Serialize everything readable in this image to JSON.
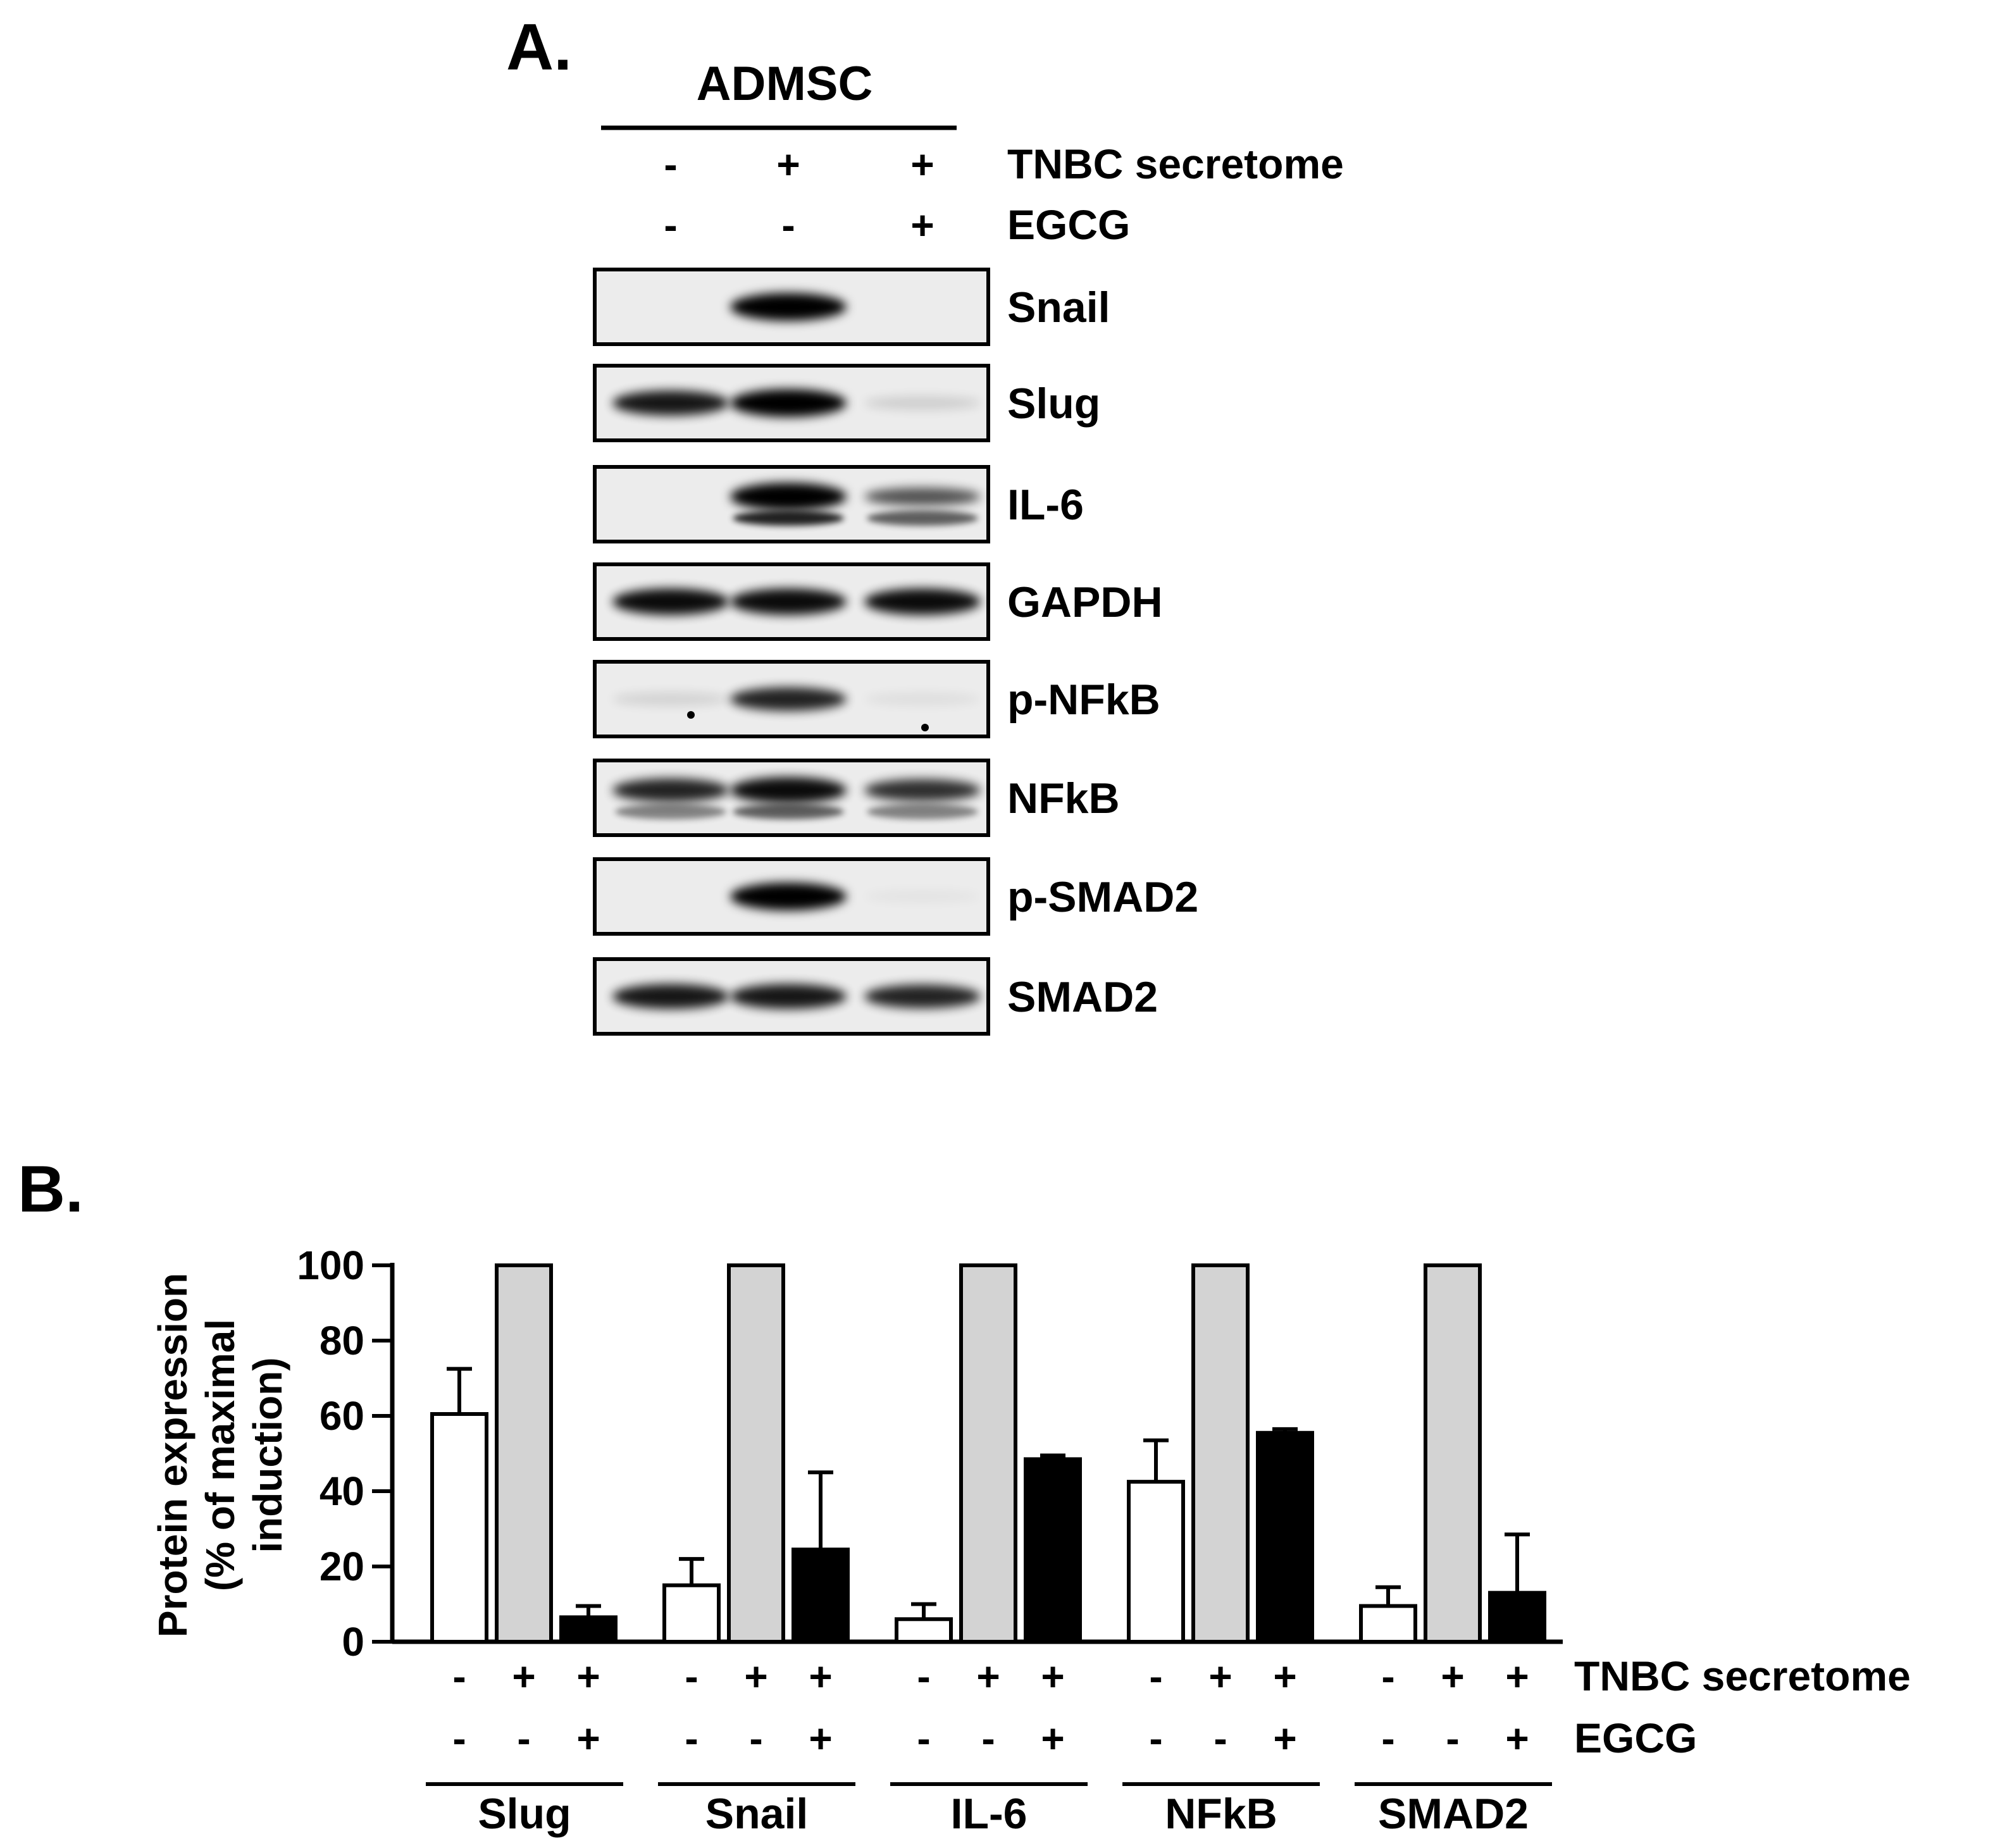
{
  "panel_a": {
    "label": "A.",
    "cell_line": "ADMSC",
    "treatments": [
      {
        "name": "TNBC secretome",
        "signs": [
          "-",
          "+",
          "+"
        ]
      },
      {
        "name": "EGCG",
        "signs": [
          "-",
          "-",
          "+"
        ]
      }
    ],
    "blots": [
      {
        "label": "Snail"
      },
      {
        "label": "Slug"
      },
      {
        "label": "IL-6"
      },
      {
        "label": "GAPDH"
      },
      {
        "label": "p-NFkB"
      },
      {
        "label": "NFkB"
      },
      {
        "label": "p-SMAD2"
      },
      {
        "label": "SMAD2"
      }
    ]
  },
  "panel_b": {
    "label": "B."
  },
  "chart_data": {
    "type": "bar",
    "ylabel": "Protein expression (% of maximal induction)",
    "ylabel_lines": [
      "Protein expression",
      "(% of maximal",
      "induction)"
    ],
    "ylim": [
      0,
      100
    ],
    "yticks": [
      "0",
      "20",
      "40",
      "60",
      "80",
      "100"
    ],
    "categories": [
      "Slug",
      "Snail",
      "IL-6",
      "NFkB",
      "SMAD2"
    ],
    "series": [
      {
        "key": "control",
        "fill": "#ffffff",
        "values": [
          60.5,
          15,
          6,
          42.5,
          9.5
        ],
        "errors": [
          12,
          7,
          4,
          11,
          5
        ]
      },
      {
        "key": "tnbc",
        "fill": "#d3d3d3",
        "values": [
          100,
          100,
          100,
          100,
          100
        ],
        "errors": [
          0,
          0,
          0,
          0,
          0
        ]
      },
      {
        "key": "tnbc_egcg",
        "fill": "#000000",
        "values": [
          6.5,
          24.5,
          48.5,
          55.5,
          13
        ],
        "errors": [
          3,
          20.5,
          1,
          1,
          15.5
        ]
      }
    ],
    "treatments": [
      {
        "name": "TNBC secretome",
        "signs": [
          "-",
          "+",
          "+"
        ]
      },
      {
        "name": "EGCG",
        "signs": [
          "-",
          "-",
          "+"
        ]
      }
    ],
    "grid": false,
    "legend": "none"
  }
}
